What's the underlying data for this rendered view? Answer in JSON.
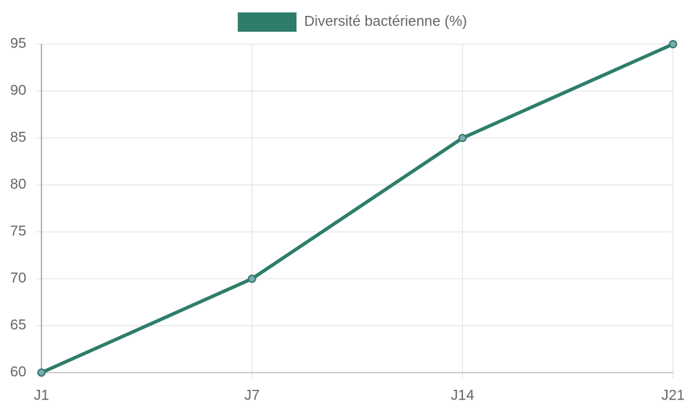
{
  "chart_data": {
    "type": "line",
    "categories": [
      "J1",
      "J7",
      "J14",
      "J21"
    ],
    "series": [
      {
        "name": "Diversité bactérienne (%)",
        "color": "#2e7d6b",
        "point_color": "#7fa9b3",
        "values": [
          60,
          70,
          85,
          95
        ]
      }
    ],
    "ylim": [
      60,
      95
    ],
    "yticks": [
      60,
      65,
      70,
      75,
      80,
      85,
      90,
      95
    ],
    "grid": true,
    "legend": "top"
  }
}
